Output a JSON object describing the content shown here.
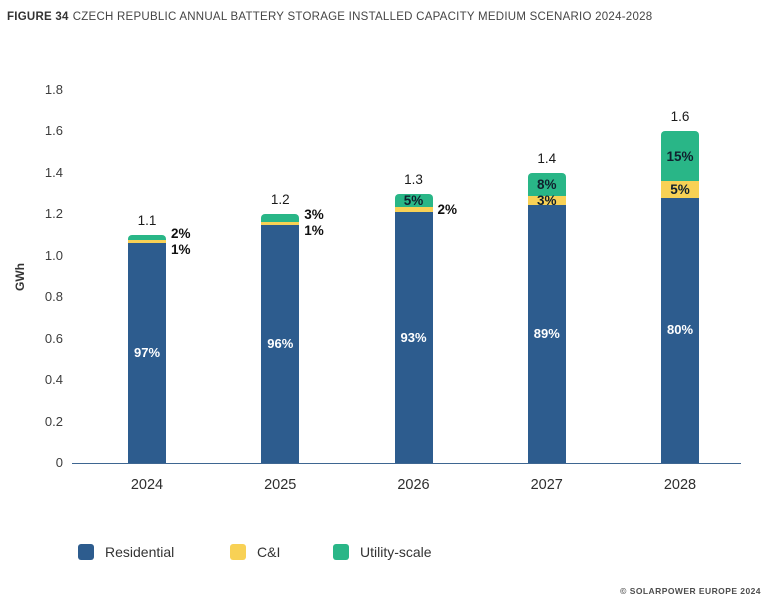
{
  "title": {
    "prefix": "FIGURE 34",
    "text": "CZECH REPUBLIC ANNUAL BATTERY STORAGE INSTALLED CAPACITY MEDIUM SCENARIO 2024-2028"
  },
  "footer": "© SOLARPOWER EUROPE 2024",
  "colors": {
    "residential": "#2d5c8e",
    "ci": "#f8d155",
    "utility": "#29b687",
    "axis_line": "#3e6691"
  },
  "legend": {
    "items": [
      {
        "label": "Residential",
        "color_key": "residential"
      },
      {
        "label": "C&I",
        "color_key": "ci"
      },
      {
        "label": "Utility-scale",
        "color_key": "utility"
      }
    ]
  },
  "chart_data": {
    "type": "bar",
    "stacked": true,
    "title": "FIGURE 34 CZECH REPUBLIC ANNUAL BATTERY STORAGE INSTALLED CAPACITY MEDIUM SCENARIO 2024-2028",
    "xlabel": "",
    "ylabel": "GWh",
    "ylim": [
      0,
      1.8
    ],
    "ytick_step": 0.2,
    "grid": false,
    "legend_position": "bottom",
    "categories": [
      "2024",
      "2025",
      "2026",
      "2027",
      "2028"
    ],
    "totals_gwh": [
      1.1,
      1.2,
      1.3,
      1.4,
      1.6
    ],
    "series": [
      {
        "name": "Residential",
        "color_key": "residential",
        "pct": [
          97,
          96,
          93,
          89,
          80
        ],
        "values_gwh": [
          1.07,
          1.15,
          1.21,
          1.25,
          1.28
        ],
        "label_position": [
          "inside",
          "inside",
          "inside",
          "inside",
          "inside"
        ]
      },
      {
        "name": "C&I",
        "color_key": "ci",
        "pct": [
          1,
          1,
          2,
          3,
          5
        ],
        "values_gwh": [
          0.01,
          0.01,
          0.03,
          0.04,
          0.08
        ],
        "label_position": [
          "outside",
          "outside",
          "outside",
          "inside",
          "inside"
        ]
      },
      {
        "name": "Utility-scale",
        "color_key": "utility",
        "pct": [
          2,
          3,
          5,
          8,
          15
        ],
        "values_gwh": [
          0.02,
          0.04,
          0.07,
          0.11,
          0.24
        ],
        "label_position": [
          "outside",
          "outside",
          "inside",
          "inside",
          "inside"
        ]
      }
    ]
  }
}
